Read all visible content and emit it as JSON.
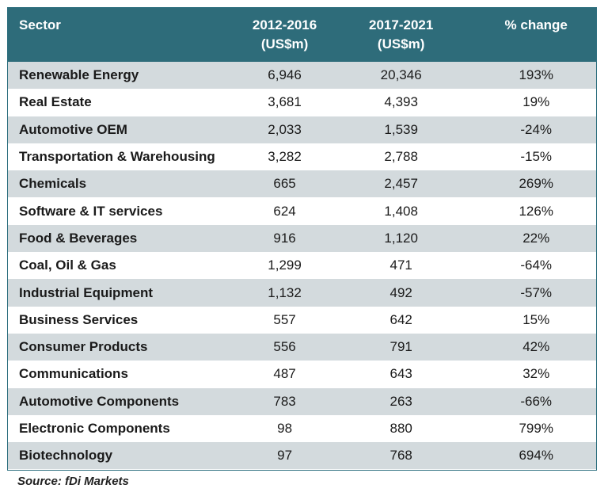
{
  "table": {
    "headers": {
      "sector": "Sector",
      "period1_line1": "2012-2016",
      "period1_line2": "(US$m)",
      "period2_line1": "2017-2021",
      "period2_line2": "(US$m)",
      "change": "% change"
    },
    "rows": [
      {
        "sector": "Renewable Energy",
        "p1": "6,946",
        "p2": "20,346",
        "change": "193%"
      },
      {
        "sector": "Real Estate",
        "p1": "3,681",
        "p2": "4,393",
        "change": "19%"
      },
      {
        "sector": "Automotive OEM",
        "p1": "2,033",
        "p2": "1,539",
        "change": "-24%"
      },
      {
        "sector": "Transportation & Warehousing",
        "p1": "3,282",
        "p2": "2,788",
        "change": "-15%"
      },
      {
        "sector": "Chemicals",
        "p1": "665",
        "p2": "2,457",
        "change": "269%"
      },
      {
        "sector": "Software & IT services",
        "p1": "624",
        "p2": "1,408",
        "change": "126%"
      },
      {
        "sector": "Food & Beverages",
        "p1": "916",
        "p2": "1,120",
        "change": "22%"
      },
      {
        "sector": "Coal, Oil & Gas",
        "p1": "1,299",
        "p2": "471",
        "change": "-64%"
      },
      {
        "sector": "Industrial Equipment",
        "p1": "1,132",
        "p2": "492",
        "change": "-57%"
      },
      {
        "sector": "Business Services",
        "p1": "557",
        "p2": "642",
        "change": "15%"
      },
      {
        "sector": "Consumer Products",
        "p1": "556",
        "p2": "791",
        "change": "42%"
      },
      {
        "sector": "Communications",
        "p1": "487",
        "p2": "643",
        "change": "32%"
      },
      {
        "sector": "Automotive Components",
        "p1": "783",
        "p2": "263",
        "change": "-66%"
      },
      {
        "sector": "Electronic Components",
        "p1": "98",
        "p2": "880",
        "change": "799%"
      },
      {
        "sector": "Biotechnology",
        "p1": "97",
        "p2": "768",
        "change": "694%"
      }
    ]
  },
  "source": "Source: fDi Markets",
  "colors": {
    "header_bg": "#2e6c7a",
    "stripe": "#d3dadd"
  }
}
